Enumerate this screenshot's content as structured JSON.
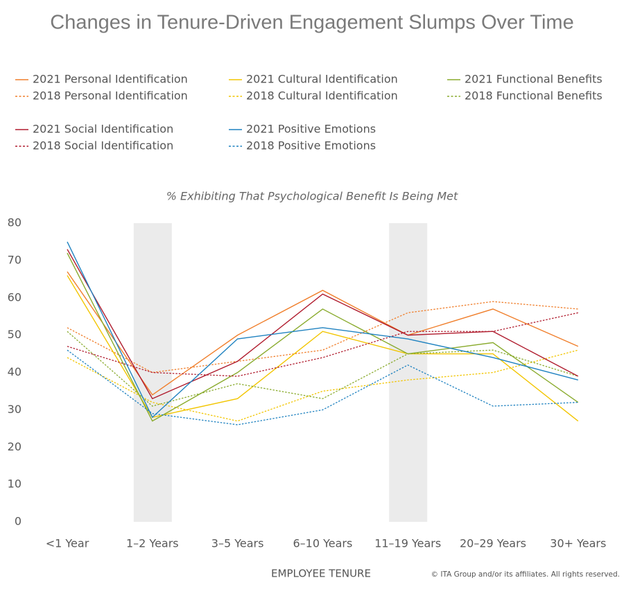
{
  "chart_data": {
    "type": "line",
    "title": "Changes in Tenure-Driven Engagement Slumps Over Time",
    "subtitle": "% Exhibiting That Psychological Benefit Is Being Met",
    "x_label": "EMPLOYEE TENURE",
    "note": "© ITA Group and/or its affiliates. All rights reserved.",
    "categories": [
      "<1 Year",
      "1–2 Years",
      "3–5 Years",
      "6–10 Years",
      "11–19 Years",
      "20–29 Years",
      "30+ Years"
    ],
    "ylim": [
      0,
      80
    ],
    "yticks": [
      0,
      10,
      20,
      30,
      40,
      50,
      60,
      70,
      80
    ],
    "grid": false,
    "series": [
      {
        "name": "2021 Personal Identification",
        "color": "#f07f2c",
        "dashed": false,
        "values": [
          67,
          34,
          50,
          62,
          50,
          57,
          47
        ]
      },
      {
        "name": "2018 Personal Identification",
        "color": "#f07f2c",
        "dashed": true,
        "values": [
          52,
          40,
          43,
          46,
          56,
          59,
          57
        ]
      },
      {
        "name": "2021 Cultural Identification",
        "color": "#f2c500",
        "dashed": false,
        "values": [
          66,
          28,
          33,
          51,
          45,
          45,
          27
        ]
      },
      {
        "name": "2018 Cultural Identification",
        "color": "#f2c500",
        "dashed": true,
        "values": [
          44,
          32,
          27,
          35,
          38,
          40,
          46
        ]
      },
      {
        "name": "2021 Functional Benefits",
        "color": "#8aab2e",
        "dashed": false,
        "values": [
          72,
          27,
          40,
          57,
          45,
          48,
          32
        ]
      },
      {
        "name": "2018 Functional Benefits",
        "color": "#8aab2e",
        "dashed": true,
        "values": [
          51,
          31,
          37,
          33,
          45,
          46,
          39
        ]
      },
      {
        "name": "2021 Social Identification",
        "color": "#b01c2e",
        "dashed": false,
        "values": [
          73,
          33,
          43,
          61,
          50,
          51,
          39
        ]
      },
      {
        "name": "2018 Social Identification",
        "color": "#b01c2e",
        "dashed": true,
        "values": [
          47,
          40,
          39,
          44,
          51,
          51,
          56
        ]
      },
      {
        "name": "2021 Positive Emotions",
        "color": "#1f82c0",
        "dashed": false,
        "values": [
          75,
          28,
          49,
          52,
          49,
          44,
          38
        ]
      },
      {
        "name": "2018 Positive Emotions",
        "color": "#1f82c0",
        "dashed": true,
        "values": [
          46,
          29,
          26,
          30,
          42,
          31,
          32
        ]
      }
    ]
  }
}
